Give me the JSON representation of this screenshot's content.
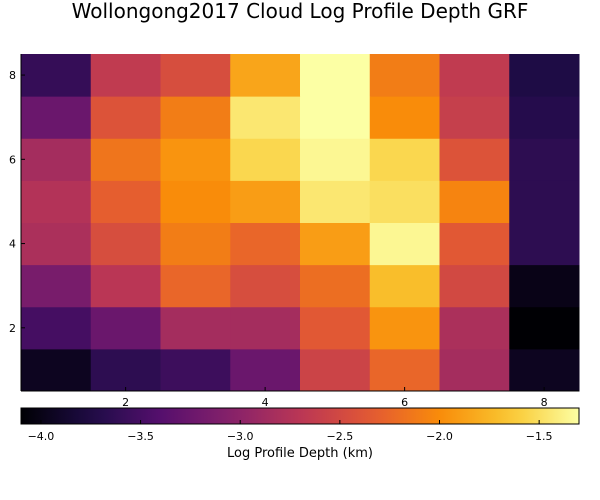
{
  "chart_data": {
    "type": "heatmap",
    "title": "Wollongong2017 Cloud Log Profile Depth GRF",
    "xlabel": "",
    "ylabel": "",
    "colorbar_label": "Log Profile Depth (km)",
    "x": [
      1,
      2,
      3,
      4,
      5,
      6,
      7,
      8
    ],
    "y": [
      1,
      2,
      3,
      4,
      5,
      6,
      7,
      8
    ],
    "xlim": [
      0.5,
      8.5
    ],
    "ylim": [
      0.5,
      8.5
    ],
    "x_ticks": [
      2,
      4,
      6,
      8
    ],
    "y_ticks": [
      2,
      4,
      6,
      8
    ],
    "x_tick_labels": [
      "2",
      "4",
      "6",
      "8"
    ],
    "y_tick_labels": [
      "2",
      "4",
      "6",
      "8"
    ],
    "colorbar_range": [
      -4.1,
      -1.3
    ],
    "colorbar_ticks": [
      -4.0,
      -3.5,
      -3.0,
      -2.5,
      -2.0,
      -1.5
    ],
    "colorbar_tick_labels": [
      "−4.0",
      "−3.5",
      "−3.0",
      "−2.5",
      "−2.0",
      "−1.5"
    ],
    "colormap": "inferno",
    "grid": false,
    "z": [
      [
        -3.95,
        -3.65,
        -3.55,
        -3.25,
        -2.55,
        -2.25,
        -2.85,
        -3.95
      ],
      [
        -3.5,
        -3.25,
        -2.85,
        -2.85,
        -2.35,
        -1.95,
        -2.8,
        -4.1
      ],
      [
        -3.15,
        -2.7,
        -2.25,
        -2.45,
        -2.2,
        -1.7,
        -2.5,
        -4.0
      ],
      [
        -2.8,
        -2.45,
        -2.1,
        -2.25,
        -1.9,
        -1.35,
        -2.35,
        -3.65
      ],
      [
        -2.75,
        -2.3,
        -2.0,
        -1.9,
        -1.45,
        -1.5,
        -2.05,
        -3.65
      ],
      [
        -2.85,
        -2.15,
        -1.95,
        -1.55,
        -1.35,
        -1.55,
        -2.4,
        -3.65
      ],
      [
        -3.25,
        -2.4,
        -2.1,
        -1.45,
        -1.3,
        -2.0,
        -2.6,
        -3.7
      ],
      [
        -3.6,
        -2.65,
        -2.45,
        -1.85,
        -1.3,
        -2.1,
        -2.65,
        -3.75
      ]
    ]
  }
}
